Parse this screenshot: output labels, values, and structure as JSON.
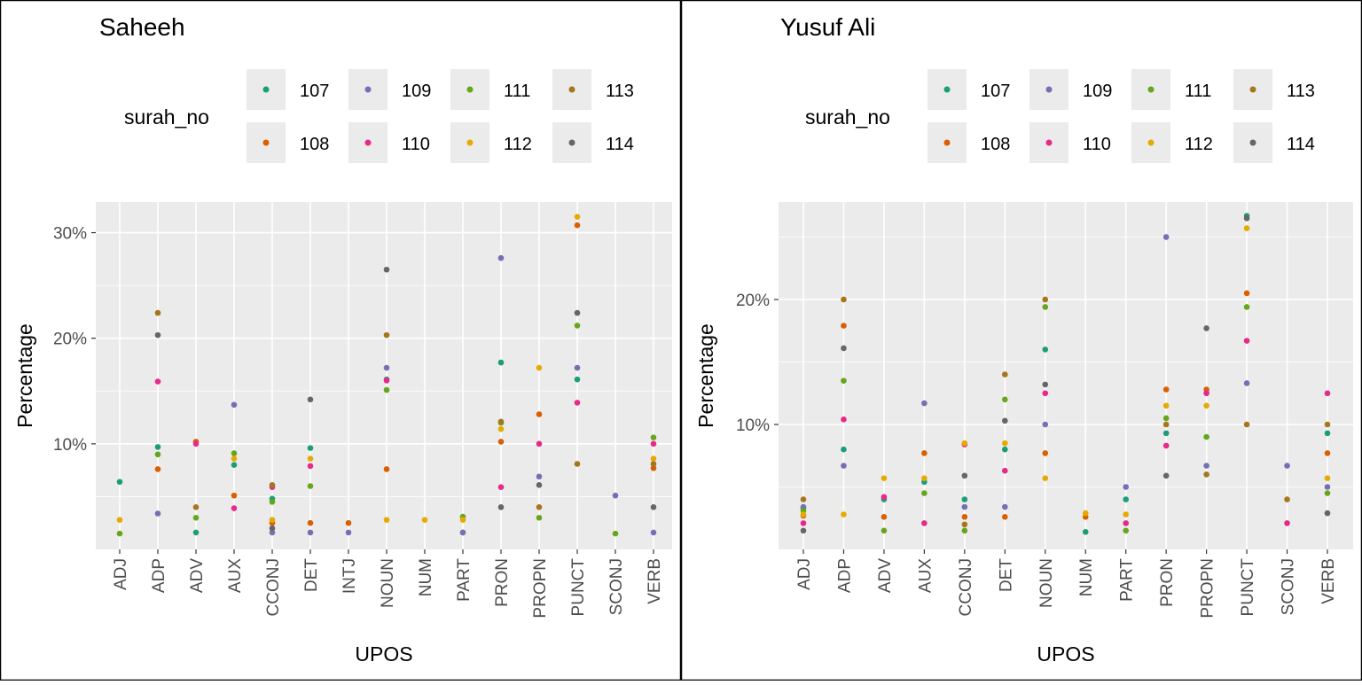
{
  "chart_data": [
    {
      "type": "scatter",
      "title": "Saheeh",
      "xlabel": "UPOS",
      "ylabel": "Percentage",
      "ylim": [
        0,
        32.9
      ],
      "yticks": [
        10,
        20,
        30
      ],
      "ytick_labels": [
        "10%",
        "20%",
        "30%"
      ],
      "grid": true,
      "legend": {
        "title": "surah_no",
        "placement": "top"
      },
      "categories": [
        "ADJ",
        "ADP",
        "ADV",
        "AUX",
        "CCONJ",
        "DET",
        "INTJ",
        "NOUN",
        "NUM",
        "PART",
        "PRON",
        "PROPN",
        "PUNCT",
        "SCONJ",
        "VERB"
      ],
      "series": [
        {
          "name": "107",
          "color": "#1B9E77",
          "values": [
            6.4,
            9.7,
            1.6,
            8.0,
            4.8,
            9.6,
            null,
            16.1,
            null,
            1.6,
            17.7,
            null,
            16.1,
            null,
            null
          ]
        },
        {
          "name": "108",
          "color": "#D95F02",
          "values": [
            null,
            7.6,
            10.2,
            5.1,
            2.5,
            2.5,
            2.5,
            7.6,
            null,
            null,
            10.2,
            12.8,
            30.7,
            null,
            7.7
          ]
        },
        {
          "name": "109",
          "color": "#7570B3",
          "values": [
            null,
            3.4,
            null,
            13.7,
            1.6,
            1.6,
            1.6,
            17.2,
            null,
            1.6,
            27.6,
            6.9,
            17.2,
            5.1,
            1.6
          ]
        },
        {
          "name": "110",
          "color": "#E7298A",
          "values": [
            null,
            15.9,
            10.0,
            3.9,
            5.9,
            7.9,
            null,
            16.0,
            null,
            null,
            5.9,
            10.0,
            13.9,
            null,
            10.0
          ]
        },
        {
          "name": "111",
          "color": "#66A61E",
          "values": [
            1.5,
            9.0,
            3.0,
            9.1,
            4.5,
            6.0,
            null,
            15.1,
            null,
            3.1,
            12.0,
            3.0,
            21.2,
            1.5,
            10.6
          ]
        },
        {
          "name": "112",
          "color": "#E6AB02",
          "values": [
            2.8,
            null,
            null,
            8.6,
            2.8,
            8.6,
            null,
            2.8,
            2.8,
            2.8,
            11.4,
            17.2,
            31.5,
            null,
            8.6
          ]
        },
        {
          "name": "113",
          "color": "#A6761D",
          "values": [
            null,
            22.4,
            4.0,
            null,
            6.1,
            null,
            null,
            20.3,
            null,
            null,
            12.1,
            4.0,
            8.1,
            null,
            8.1
          ]
        },
        {
          "name": "114",
          "color": "#666666",
          "values": [
            null,
            20.3,
            null,
            null,
            2.0,
            14.2,
            null,
            26.5,
            null,
            null,
            4.0,
            6.1,
            22.4,
            null,
            4.0
          ]
        }
      ]
    },
    {
      "type": "scatter",
      "title": "Yusuf Ali",
      "xlabel": "UPOS",
      "ylabel": "Percentage",
      "ylim": [
        0,
        27.8
      ],
      "yticks": [
        10,
        20
      ],
      "ytick_labels": [
        "10%",
        "20%"
      ],
      "grid": true,
      "legend": {
        "title": "surah_no",
        "placement": "top"
      },
      "categories": [
        "ADJ",
        "ADP",
        "ADV",
        "AUX",
        "CCONJ",
        "DET",
        "NOUN",
        "NUM",
        "PART",
        "PRON",
        "PROPN",
        "PUNCT",
        "SCONJ",
        "VERB"
      ],
      "series": [
        {
          "name": "107",
          "color": "#1B9E77",
          "values": [
            3.3,
            8.0,
            4.0,
            5.4,
            4.0,
            8.0,
            16.0,
            1.4,
            4.0,
            9.3,
            null,
            26.7,
            null,
            9.3
          ]
        },
        {
          "name": "108",
          "color": "#D95F02",
          "values": [
            2.7,
            17.9,
            2.6,
            7.7,
            2.6,
            2.6,
            7.7,
            2.6,
            null,
            12.8,
            12.8,
            20.5,
            null,
            7.7
          ]
        },
        {
          "name": "109",
          "color": "#7570B3",
          "values": [
            3.4,
            6.7,
            null,
            11.7,
            3.4,
            3.4,
            10.0,
            null,
            5.0,
            25.0,
            6.7,
            13.3,
            6.7,
            5.0
          ]
        },
        {
          "name": "110",
          "color": "#E7298A",
          "values": [
            2.1,
            10.4,
            4.2,
            2.1,
            8.4,
            6.3,
            12.5,
            null,
            2.1,
            8.3,
            12.5,
            16.7,
            2.1,
            12.5
          ]
        },
        {
          "name": "111",
          "color": "#66A61E",
          "values": [
            3.1,
            13.5,
            1.5,
            4.5,
            1.5,
            12.0,
            19.4,
            null,
            1.5,
            10.5,
            9.0,
            19.4,
            null,
            4.5
          ]
        },
        {
          "name": "112",
          "color": "#E6AB02",
          "values": [
            2.8,
            2.8,
            5.7,
            5.7,
            8.5,
            8.5,
            5.7,
            2.9,
            2.8,
            11.5,
            11.5,
            25.7,
            null,
            5.7
          ]
        },
        {
          "name": "113",
          "color": "#A6761D",
          "values": [
            4.0,
            20.0,
            null,
            null,
            2.0,
            14.0,
            20.0,
            null,
            null,
            10.0,
            6.0,
            10.0,
            4.0,
            10.0
          ]
        },
        {
          "name": "114",
          "color": "#666666",
          "values": [
            1.5,
            16.1,
            null,
            null,
            5.9,
            10.3,
            13.2,
            null,
            null,
            5.9,
            17.7,
            26.5,
            null,
            2.9
          ]
        }
      ]
    }
  ]
}
